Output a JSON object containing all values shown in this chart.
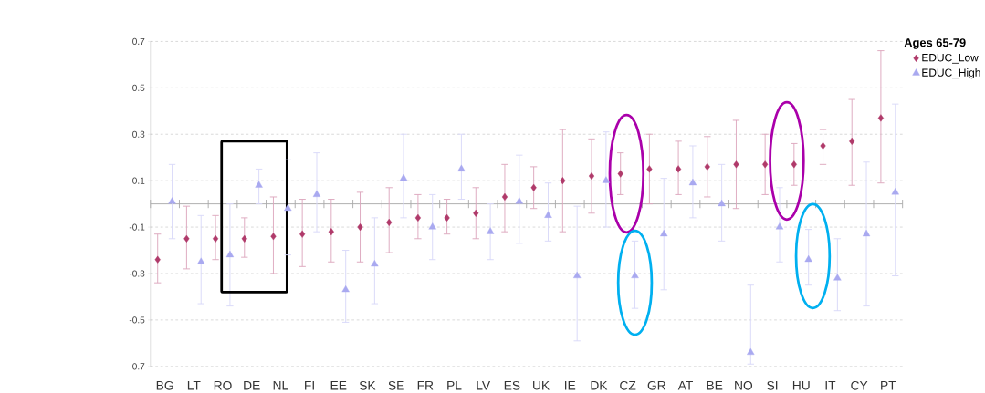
{
  "chart_data": {
    "type": "scatter",
    "categories": [
      "BG",
      "LT",
      "RO",
      "DE",
      "NL",
      "FI",
      "EE",
      "SK",
      "SE",
      "FR",
      "PL",
      "LV",
      "ES",
      "UK",
      "IE",
      "DK",
      "CZ",
      "GR",
      "AT",
      "BE",
      "NO",
      "SI",
      "HU",
      "IT",
      "CY",
      "PT"
    ],
    "legend_title": "Ages 65-79",
    "series": [
      {
        "name": "EDUC_Low",
        "color": "#b03a6a",
        "marker": "diamond",
        "values": [
          -0.24,
          -0.15,
          -0.15,
          -0.15,
          -0.14,
          -0.13,
          -0.12,
          -0.1,
          -0.08,
          -0.06,
          -0.06,
          -0.04,
          0.03,
          0.07,
          0.1,
          0.12,
          0.13,
          0.15,
          0.15,
          0.16,
          0.17,
          0.17,
          0.17,
          0.25,
          0.27,
          0.37
        ],
        "errors": [
          [
            -0.34,
            -0.13
          ],
          [
            -0.28,
            -0.01
          ],
          [
            -0.24,
            -0.05
          ],
          [
            -0.23,
            -0.06
          ],
          [
            -0.3,
            0.03
          ],
          [
            -0.27,
            0.02
          ],
          [
            -0.25,
            0.02
          ],
          [
            -0.25,
            0.05
          ],
          [
            -0.21,
            0.07
          ],
          [
            -0.15,
            0.04
          ],
          [
            -0.13,
            0.02
          ],
          [
            -0.15,
            0.07
          ],
          [
            -0.12,
            0.17
          ],
          [
            -0.02,
            0.16
          ],
          [
            -0.12,
            0.32
          ],
          [
            -0.04,
            0.28
          ],
          [
            0.04,
            0.22
          ],
          [
            0.0,
            0.3
          ],
          [
            0.04,
            0.27
          ],
          [
            0.03,
            0.29
          ],
          [
            -0.02,
            0.36
          ],
          [
            0.04,
            0.3
          ],
          [
            0.08,
            0.26
          ],
          [
            0.17,
            0.32
          ],
          [
            0.08,
            0.45
          ],
          [
            0.09,
            0.66
          ]
        ]
      },
      {
        "name": "EDUC_High",
        "color": "#a9a9f0",
        "marker": "triangle",
        "values": [
          0.01,
          -0.25,
          -0.22,
          0.08,
          -0.02,
          0.04,
          -0.37,
          -0.26,
          0.11,
          -0.1,
          0.15,
          -0.12,
          0.01,
          -0.05,
          -0.31,
          0.1,
          -0.31,
          -0.13,
          0.09,
          0.0,
          -0.64,
          -0.1,
          -0.24,
          -0.32,
          -0.13,
          0.05
        ],
        "errors": [
          [
            -0.15,
            0.17
          ],
          [
            -0.43,
            -0.05
          ],
          [
            -0.44,
            0.0
          ],
          [
            0.0,
            0.15
          ],
          [
            -0.22,
            0.19
          ],
          [
            -0.12,
            0.22
          ],
          [
            -0.51,
            -0.2
          ],
          [
            -0.43,
            -0.06
          ],
          [
            -0.06,
            0.3
          ],
          [
            -0.24,
            0.04
          ],
          [
            0.02,
            0.3
          ],
          [
            -0.24,
            0.0
          ],
          [
            -0.17,
            0.21
          ],
          [
            -0.16,
            0.09
          ],
          [
            -0.59,
            -0.01
          ],
          [
            -0.1,
            0.31
          ],
          [
            -0.45,
            -0.16
          ],
          [
            -0.37,
            0.11
          ],
          [
            -0.06,
            0.25
          ],
          [
            -0.16,
            0.17
          ],
          [
            -0.69,
            -0.35
          ],
          [
            -0.25,
            0.07
          ],
          [
            -0.35,
            -0.11
          ],
          [
            -0.46,
            -0.15
          ],
          [
            -0.44,
            0.18
          ],
          [
            -0.31,
            0.43
          ]
        ]
      }
    ],
    "ylim": [
      -0.7,
      0.7
    ],
    "yticks": [
      -0.7,
      -0.5,
      -0.3,
      -0.1,
      0.1,
      0.3,
      0.5,
      0.7
    ],
    "ref_lines": [
      {
        "axis": "y",
        "value": 0,
        "color": "#aaaaaa"
      }
    ],
    "grid": "y",
    "legend": "top right"
  }
}
